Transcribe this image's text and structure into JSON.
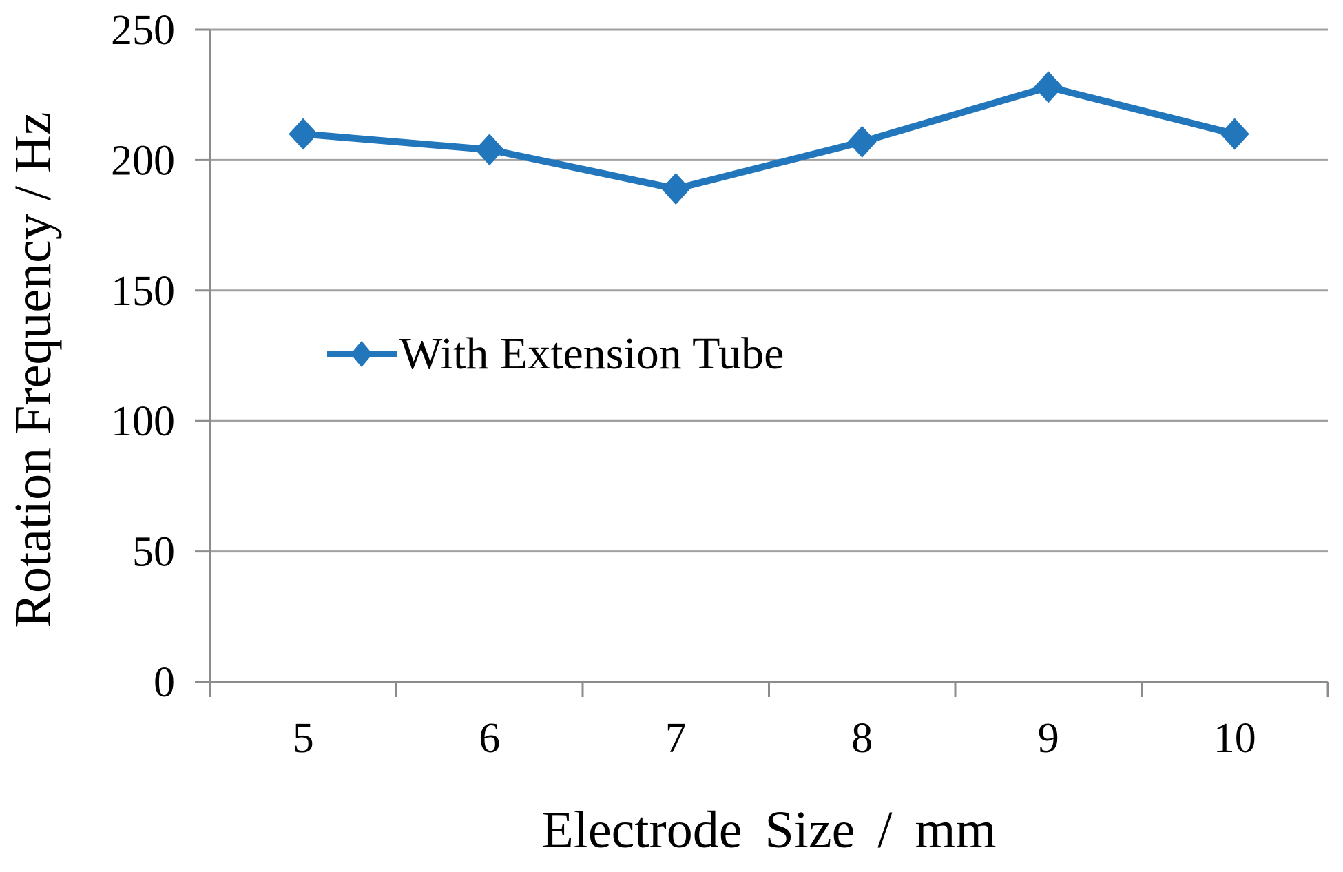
{
  "chart_data": {
    "type": "line",
    "categories": [
      "5",
      "6",
      "7",
      "8",
      "9",
      "10"
    ],
    "series": [
      {
        "name": "With Extension Tube",
        "values": [
          210,
          204,
          189,
          207,
          228,
          210
        ],
        "marker": "diamond"
      }
    ],
    "title": "",
    "xlabel": "Electrode Size / mm",
    "ylabel": "Rotation Frequency / Hz",
    "ylim": [
      0,
      250
    ],
    "yticks": [
      0,
      50,
      100,
      150,
      200,
      250
    ],
    "grid": "horizontal",
    "legend_position": "inside-middle-left",
    "colors": {
      "series": "#2276BC",
      "gridline": "#A0A0A0",
      "axis": "#8C8C8C",
      "text": "#000000",
      "background": "#FFFFFF"
    }
  }
}
